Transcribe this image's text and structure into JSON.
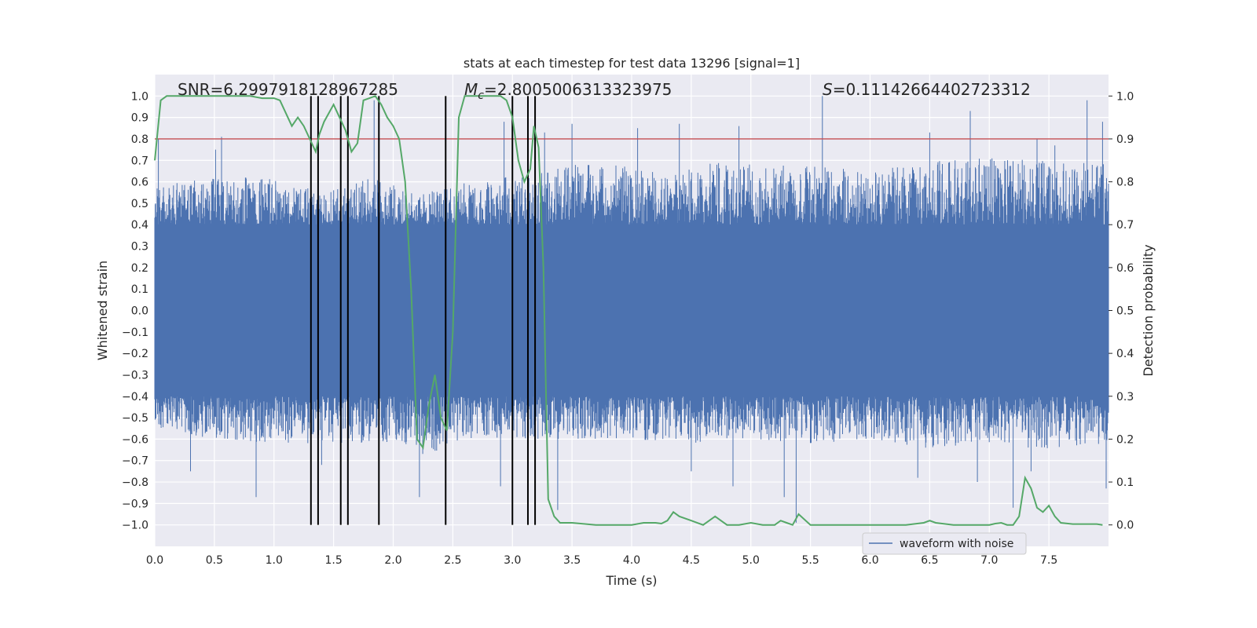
{
  "chart_data": {
    "type": "line",
    "title": "stats at each timestep for test data 13296 [signal=1]",
    "xlabel": "Time (s)",
    "ylabel": "Whitened strain",
    "ylabel_right": "Detection probability",
    "xlim": [
      0.0,
      8.0
    ],
    "ylim": [
      -1.1,
      1.1
    ],
    "ylim_right": [
      -0.05,
      1.05
    ],
    "x_ticks": [
      0.0,
      0.5,
      1.0,
      1.5,
      2.0,
      2.5,
      3.0,
      3.5,
      4.0,
      4.5,
      5.0,
      5.5,
      6.0,
      6.5,
      7.0,
      7.5
    ],
    "x_tick_labels": [
      "0.0",
      "0.5",
      "1.0",
      "1.5",
      "2.0",
      "2.5",
      "3.0",
      "3.5",
      "4.0",
      "4.5",
      "5.0",
      "5.5",
      "6.0",
      "6.5",
      "7.0",
      "7.5"
    ],
    "y_ticks": [
      1.0,
      0.9,
      0.8,
      0.7,
      0.6,
      0.5,
      0.4,
      0.3,
      0.2,
      0.1,
      0.0,
      -0.1,
      -0.2,
      -0.3,
      -0.4,
      -0.5,
      -0.6,
      -0.7,
      -0.8,
      -0.9,
      -1.0
    ],
    "y_tick_labels": [
      "1.0",
      "0.9",
      "0.8",
      "0.7",
      "0.6",
      "0.5",
      "0.4",
      "0.3",
      "0.2",
      "0.1",
      "0.0",
      "−0.1",
      "−0.2",
      "−0.3",
      "−0.4",
      "−0.5",
      "−0.6",
      "−0.7",
      "−0.8",
      "−0.9",
      "−1.0"
    ],
    "y_right_ticks": [
      1.0,
      0.9,
      0.8,
      0.7,
      0.6,
      0.5,
      0.4,
      0.3,
      0.2,
      0.1,
      0.0
    ],
    "y_right_tick_labels": [
      "1.0",
      "0.9",
      "0.8",
      "0.7",
      "0.6",
      "0.5",
      "0.4",
      "0.3",
      "0.2",
      "0.1",
      "0.0"
    ],
    "grid": true,
    "annotations": {
      "snr": "SNR=6.2997918128967285",
      "mc_symbol": "M",
      "mc_sub": "c",
      "mc_value": "=2.8005006313323975",
      "s_symbol": "S",
      "s_value": "=0.11142664402723312"
    },
    "threshold": 0.9,
    "threshold_color": "#c44e52",
    "waveform_color": "#4c72b0",
    "probability_color": "#55a868",
    "vline_color": "#000000",
    "waveform": {
      "name": "waveform with noise",
      "duration": 8.0,
      "band": 0.4,
      "seed": 13296,
      "top_envelope": [
        [
          0.0,
          0.58
        ],
        [
          0.5,
          0.62
        ],
        [
          1.0,
          0.62
        ],
        [
          1.4,
          0.55
        ],
        [
          1.8,
          0.62
        ],
        [
          2.2,
          0.55
        ],
        [
          2.6,
          0.6
        ],
        [
          3.2,
          0.65
        ],
        [
          3.6,
          0.7
        ],
        [
          4.2,
          0.65
        ],
        [
          4.8,
          0.7
        ],
        [
          5.4,
          0.68
        ],
        [
          6.0,
          0.65
        ],
        [
          6.6,
          0.7
        ],
        [
          7.2,
          0.72
        ],
        [
          8.0,
          0.68
        ]
      ],
      "bottom_envelope": [
        [
          0.0,
          -0.55
        ],
        [
          0.5,
          -0.6
        ],
        [
          1.0,
          -0.62
        ],
        [
          1.5,
          -0.62
        ],
        [
          2.0,
          -0.62
        ],
        [
          2.3,
          -0.68
        ],
        [
          2.6,
          -0.6
        ],
        [
          3.0,
          -0.6
        ],
        [
          3.5,
          -0.6
        ],
        [
          4.0,
          -0.6
        ],
        [
          4.5,
          -0.62
        ],
        [
          5.0,
          -0.6
        ],
        [
          5.5,
          -0.62
        ],
        [
          6.0,
          -0.6
        ],
        [
          6.5,
          -0.65
        ],
        [
          7.0,
          -0.62
        ],
        [
          7.5,
          -0.65
        ],
        [
          8.0,
          -0.62
        ]
      ],
      "top_peaks": [
        [
          0.03,
          0.8
        ],
        [
          0.51,
          0.75
        ],
        [
          0.56,
          0.81
        ],
        [
          1.84,
          0.98
        ],
        [
          1.88,
          0.9
        ],
        [
          2.93,
          0.88
        ],
        [
          3.27,
          0.83
        ],
        [
          3.5,
          0.87
        ],
        [
          4.05,
          0.85
        ],
        [
          4.4,
          0.87
        ],
        [
          4.9,
          0.86
        ],
        [
          5.6,
          1.0
        ],
        [
          6.5,
          0.83
        ],
        [
          6.84,
          0.93
        ],
        [
          7.4,
          0.8
        ],
        [
          7.55,
          0.77
        ],
        [
          7.82,
          0.98
        ],
        [
          7.95,
          0.88
        ]
      ],
      "bottom_peaks": [
        [
          0.3,
          -0.75
        ],
        [
          0.85,
          -0.87
        ],
        [
          1.4,
          -0.72
        ],
        [
          2.22,
          -0.87
        ],
        [
          2.9,
          -0.82
        ],
        [
          3.38,
          -0.93
        ],
        [
          4.5,
          -0.75
        ],
        [
          4.85,
          -0.82
        ],
        [
          5.28,
          -0.87
        ],
        [
          5.38,
          -0.99
        ],
        [
          6.4,
          -0.78
        ],
        [
          6.9,
          -0.8
        ],
        [
          7.2,
          -0.92
        ],
        [
          7.35,
          -0.75
        ],
        [
          7.98,
          -0.83
        ]
      ]
    },
    "probability": {
      "name": "detection probability",
      "t": [
        0.0,
        0.05,
        0.1,
        0.2,
        0.4,
        0.6,
        0.8,
        0.9,
        1.0,
        1.05,
        1.1,
        1.15,
        1.2,
        1.25,
        1.3,
        1.35,
        1.38,
        1.42,
        1.5,
        1.55,
        1.6,
        1.65,
        1.7,
        1.75,
        1.8,
        1.85,
        1.9,
        1.95,
        2.0,
        2.05,
        2.1,
        2.15,
        2.2,
        2.25,
        2.3,
        2.35,
        2.4,
        2.45,
        2.5,
        2.55,
        2.6,
        2.7,
        2.8,
        2.9,
        2.95,
        3.0,
        3.05,
        3.1,
        3.15,
        3.18,
        3.22,
        3.26,
        3.3,
        3.35,
        3.4,
        3.5,
        3.7,
        3.9,
        4.0,
        4.1,
        4.2,
        4.25,
        4.3,
        4.35,
        4.4,
        4.5,
        4.6,
        4.7,
        4.8,
        4.9,
        5.0,
        5.1,
        5.2,
        5.25,
        5.3,
        5.35,
        5.4,
        5.5,
        5.7,
        6.0,
        6.3,
        6.45,
        6.5,
        6.55,
        6.7,
        6.9,
        7.0,
        7.05,
        7.1,
        7.15,
        7.2,
        7.25,
        7.3,
        7.35,
        7.4,
        7.45,
        7.5,
        7.55,
        7.6,
        7.7,
        7.9,
        7.95
      ],
      "p": [
        0.85,
        0.99,
        1.0,
        1.0,
        1.0,
        1.0,
        1.0,
        0.995,
        0.995,
        0.99,
        0.96,
        0.93,
        0.95,
        0.93,
        0.9,
        0.87,
        0.91,
        0.94,
        0.98,
        0.95,
        0.92,
        0.87,
        0.89,
        0.99,
        0.995,
        1.0,
        0.98,
        0.95,
        0.93,
        0.9,
        0.8,
        0.55,
        0.2,
        0.18,
        0.28,
        0.35,
        0.25,
        0.22,
        0.45,
        0.95,
        1.0,
        1.0,
        1.0,
        1.0,
        0.99,
        0.95,
        0.85,
        0.8,
        0.83,
        0.93,
        0.88,
        0.6,
        0.06,
        0.02,
        0.005,
        0.005,
        0.0,
        0.0,
        0.0,
        0.005,
        0.005,
        0.003,
        0.01,
        0.03,
        0.02,
        0.01,
        0.0,
        0.02,
        0.0,
        0.0,
        0.005,
        0.0,
        0.0,
        0.01,
        0.005,
        0.0,
        0.025,
        0.0,
        0.0,
        0.0,
        0.0,
        0.005,
        0.01,
        0.005,
        0.0,
        0.0,
        0.0,
        0.003,
        0.005,
        0.0,
        0.0,
        0.02,
        0.11,
        0.085,
        0.04,
        0.03,
        0.045,
        0.02,
        0.005,
        0.002,
        0.002,
        0.0
      ]
    },
    "vlines": [
      1.31,
      1.37,
      1.56,
      1.62,
      1.88,
      2.44,
      3.0,
      3.13,
      3.19
    ],
    "legend": {
      "label": "waveform with noise",
      "placement": "lower-right"
    }
  }
}
